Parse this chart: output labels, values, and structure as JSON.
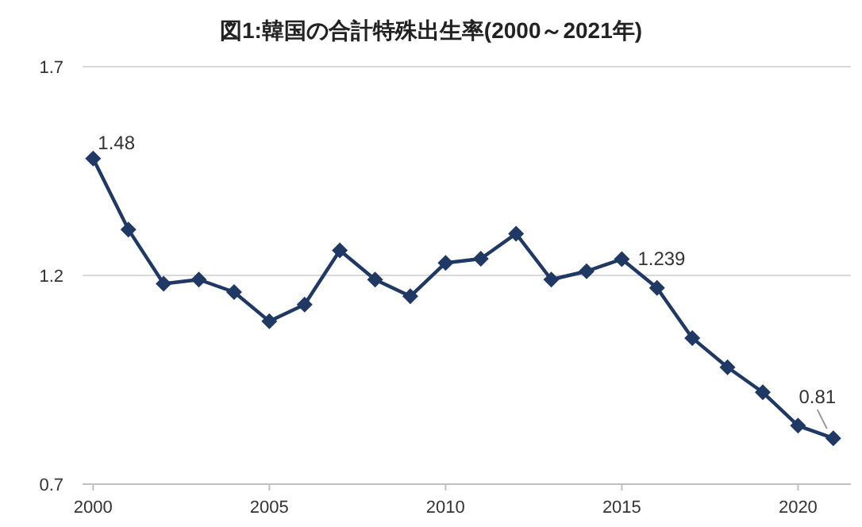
{
  "chart_data": {
    "type": "line",
    "title": "図1:韓国の合計特殊出生率(2000～2021年)",
    "x": [
      2000,
      2001,
      2002,
      2003,
      2004,
      2005,
      2006,
      2007,
      2008,
      2009,
      2010,
      2011,
      2012,
      2013,
      2014,
      2015,
      2016,
      2017,
      2018,
      2019,
      2020,
      2021
    ],
    "series": [
      {
        "color": "#1f3864",
        "values": [
          1.48,
          1.31,
          1.18,
          1.19,
          1.16,
          1.09,
          1.13,
          1.26,
          1.19,
          1.15,
          1.23,
          1.24,
          1.3,
          1.19,
          1.21,
          1.239,
          1.17,
          1.05,
          0.98,
          0.92,
          0.84,
          0.81
        ]
      }
    ],
    "xlim": [
      1999.7,
      2021.5
    ],
    "xticks": [
      2000,
      2005,
      2010,
      2015,
      2020
    ],
    "ylim": [
      0.7,
      1.7
    ],
    "yticks": [
      0.7,
      1.2,
      1.7
    ],
    "grid": "y",
    "marker": "diamond",
    "line_style": "solid",
    "annotations": [
      {
        "text": "1.48",
        "x": 2000,
        "y": 1.48
      },
      {
        "text": "1.239",
        "x": 2015,
        "y": 1.239
      },
      {
        "text": "0.81",
        "x": 2021,
        "y": 0.81
      }
    ]
  }
}
